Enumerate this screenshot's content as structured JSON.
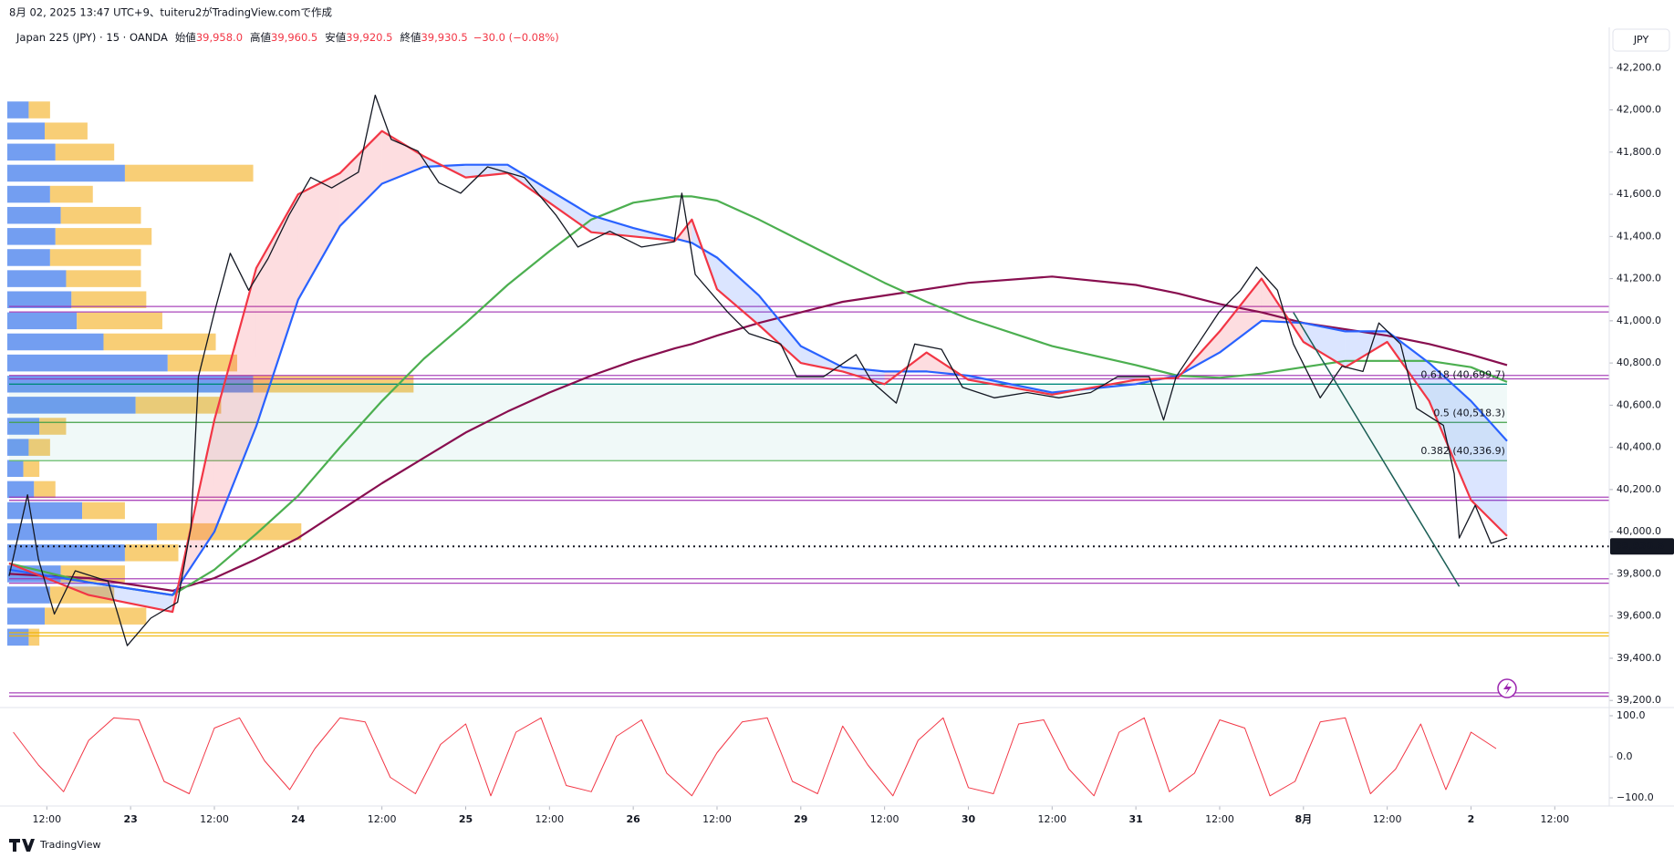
{
  "header": {
    "caption": "8月 02, 2025 13:47 UTC+9、tuiteru2がTradingView.comで作成",
    "symbol": "Japan 225 (JPY) · 15 · OANDA",
    "ohlc": [
      {
        "label": "始値",
        "value": "39,958.0"
      },
      {
        "label": "高値",
        "value": "39,960.5"
      },
      {
        "label": "安値",
        "value": "39,920.5"
      },
      {
        "label": "終値",
        "value": "39,930.5"
      }
    ],
    "change": "−30.0 (−0.08%)"
  },
  "currency": "JPY",
  "footer": "TradingView",
  "chart_data": {
    "type": "line",
    "xlim": [
      -0.45,
      18.65
    ],
    "xticks": [
      {
        "value": 0,
        "label": "12:00"
      },
      {
        "value": 1,
        "label": "23"
      },
      {
        "value": 2,
        "label": "12:00"
      },
      {
        "value": 3,
        "label": "24"
      },
      {
        "value": 4,
        "label": "12:00"
      },
      {
        "value": 5,
        "label": "25"
      },
      {
        "value": 6,
        "label": "12:00"
      },
      {
        "value": 7,
        "label": "26"
      },
      {
        "value": 8,
        "label": "12:00"
      },
      {
        "value": 9,
        "label": "29"
      },
      {
        "value": 10,
        "label": "12:00"
      },
      {
        "value": 11,
        "label": "30"
      },
      {
        "value": 12,
        "label": "12:00"
      },
      {
        "value": 13,
        "label": "31"
      },
      {
        "value": 14,
        "label": "12:00"
      },
      {
        "value": 15,
        "label": "8月"
      },
      {
        "value": 16,
        "label": "12:00"
      },
      {
        "value": 17,
        "label": "2"
      },
      {
        "value": 18,
        "label": "12:00"
      }
    ],
    "ylim": [
      39200,
      42200
    ],
    "yticks": [
      {
        "value": 42200,
        "label": "42,200.0"
      },
      {
        "value": 42000,
        "label": "42,000.0"
      },
      {
        "value": 41800,
        "label": "41,800.0"
      },
      {
        "value": 41600,
        "label": "41,600.0"
      },
      {
        "value": 41400,
        "label": "41,400.0"
      },
      {
        "value": 41200,
        "label": "41,200.0"
      },
      {
        "value": 41000,
        "label": "41,000.0"
      },
      {
        "value": 40800,
        "label": "40,800.0"
      },
      {
        "value": 40600,
        "label": "40,600.0"
      },
      {
        "value": 40400,
        "label": "40,400.0"
      },
      {
        "value": 40200,
        "label": "40,200.0"
      },
      {
        "value": 40000,
        "label": "40,000.0"
      },
      {
        "value": 39800,
        "label": "39,800.0"
      },
      {
        "value": 39600,
        "label": "39,600.0"
      },
      {
        "value": 39400,
        "label": "39,400.0"
      },
      {
        "value": 39200,
        "label": "39,200.0"
      }
    ],
    "grid": false,
    "series": [
      {
        "color": "#131722",
        "x": [
          -0.45,
          -0.23,
          -0.1,
          0.09,
          0.34,
          0.73,
          0.96,
          1.24,
          1.56,
          1.72,
          1.81,
          2.0,
          2.19,
          2.41,
          2.64,
          2.89,
          3.15,
          3.4,
          3.72,
          3.92,
          4.11,
          4.43,
          4.68,
          4.94,
          5.26,
          5.7,
          6.08,
          6.34,
          6.72,
          7.1,
          7.49,
          7.58,
          7.74,
          8.13,
          8.38,
          8.76,
          8.95,
          9.27,
          9.66,
          9.85,
          10.14,
          10.36,
          10.68,
          10.93,
          11.31,
          11.7,
          12.08,
          12.46,
          12.78,
          13.16,
          13.33,
          13.48,
          13.74,
          13.99,
          14.25,
          14.44,
          14.69,
          14.88,
          15.2,
          15.46,
          15.71,
          15.9,
          16.16,
          16.35,
          16.67,
          16.8,
          16.86,
          17.05,
          17.24,
          17.43
        ],
        "values": [
          39790,
          40175,
          39870,
          39610,
          39815,
          39765,
          39460,
          39590,
          39665,
          40020,
          40735,
          41040,
          41320,
          41145,
          41295,
          41500,
          41680,
          41630,
          41705,
          42070,
          41860,
          41805,
          41655,
          41605,
          41730,
          41680,
          41500,
          41350,
          41425,
          41350,
          41375,
          41605,
          41220,
          41040,
          40940,
          40890,
          40735,
          40735,
          40840,
          40710,
          40610,
          40890,
          40865,
          40685,
          40635,
          40660,
          40635,
          40660,
          40735,
          40735,
          40530,
          40735,
          40890,
          41040,
          41145,
          41255,
          41145,
          40890,
          40635,
          40785,
          40760,
          40990,
          40890,
          40585,
          40505,
          40275,
          39970,
          40125,
          39945,
          39970
        ]
      },
      {
        "color": "#f23645",
        "x": [
          -0.45,
          0.5,
          1.5,
          2.0,
          2.5,
          3.0,
          3.5,
          4.0,
          4.5,
          5.0,
          5.5,
          6.0,
          6.5,
          7.0,
          7.5,
          7.7,
          8.0,
          8.5,
          9.0,
          9.5,
          10.0,
          10.5,
          11.0,
          12.0,
          13.0,
          13.5,
          14.0,
          14.5,
          15.0,
          15.5,
          16.0,
          16.5,
          17.0,
          17.43
        ],
        "values": [
          39850,
          39700,
          39620,
          40530,
          41250,
          41600,
          41700,
          41900,
          41780,
          41680,
          41700,
          41560,
          41420,
          41400,
          41380,
          41480,
          41150,
          40980,
          40800,
          40760,
          40700,
          40850,
          40720,
          40650,
          40720,
          40730,
          40950,
          41200,
          40900,
          40780,
          40900,
          40620,
          40150,
          39980
        ]
      },
      {
        "color": "#2962ff",
        "x": [
          -0.45,
          0.5,
          1.5,
          2.0,
          2.5,
          3.0,
          3.5,
          4.0,
          4.5,
          5.0,
          5.5,
          6.0,
          6.5,
          7.0,
          7.5,
          7.7,
          8.0,
          8.5,
          9.0,
          9.5,
          10.0,
          10.5,
          11.0,
          12.0,
          13.0,
          13.5,
          14.0,
          14.5,
          15.0,
          15.5,
          16.0,
          16.5,
          17.0,
          17.43
        ],
        "values": [
          39820,
          39760,
          39700,
          40000,
          40500,
          41100,
          41450,
          41650,
          41730,
          41740,
          41740,
          41620,
          41500,
          41440,
          41390,
          41370,
          41300,
          41120,
          40880,
          40780,
          40760,
          40760,
          40740,
          40660,
          40700,
          40740,
          40850,
          41000,
          40990,
          40950,
          40950,
          40800,
          40620,
          40430
        ]
      },
      {
        "color": "#4caf50",
        "x": [
          -0.45,
          0.5,
          1.5,
          2.0,
          2.5,
          3.0,
          3.5,
          4.0,
          4.5,
          5.0,
          5.5,
          6.0,
          6.5,
          7.0,
          7.5,
          7.7,
          8.0,
          8.5,
          9.0,
          9.5,
          10.0,
          10.5,
          11.0,
          12.0,
          13.0,
          13.5,
          14.0,
          14.5,
          15.0,
          15.5,
          16.0,
          16.5,
          17.0,
          17.43
        ],
        "values": [
          39850,
          39760,
          39700,
          39820,
          39990,
          40170,
          40400,
          40620,
          40820,
          40990,
          41170,
          41330,
          41480,
          41560,
          41590,
          41590,
          41570,
          41480,
          41380,
          41280,
          41180,
          41090,
          41010,
          40880,
          40790,
          40740,
          40730,
          40750,
          40780,
          40810,
          40810,
          40810,
          40780,
          40710
        ]
      },
      {
        "color": "#880e4f",
        "x": [
          -0.45,
          0.5,
          1.5,
          2.0,
          2.5,
          3.0,
          3.5,
          4.0,
          4.5,
          5.0,
          5.5,
          6.0,
          6.5,
          7.0,
          7.5,
          7.7,
          8.0,
          8.5,
          9.0,
          9.5,
          10.0,
          10.5,
          11.0,
          12.0,
          13.0,
          13.5,
          14.0,
          14.5,
          15.0,
          15.5,
          16.0,
          16.5,
          17.0,
          17.43
        ],
        "values": [
          39800,
          39780,
          39720,
          39780,
          39870,
          39970,
          40100,
          40230,
          40350,
          40470,
          40570,
          40660,
          40740,
          40810,
          40870,
          40890,
          40930,
          40990,
          41040,
          41090,
          41120,
          41150,
          41180,
          41210,
          41170,
          41130,
          41080,
          41040,
          40990,
          40960,
          40930,
          40890,
          40840,
          40790
        ]
      }
    ],
    "levels": [
      {
        "value": 41068,
        "color": "#9c27b0"
      },
      {
        "value": 41042,
        "color": "#9c27b0"
      },
      {
        "value": 40741,
        "color": "#9c27b0"
      },
      {
        "value": 40725,
        "color": "#9c27b0"
      },
      {
        "value": 40164,
        "color": "#9c27b0"
      },
      {
        "value": 40149,
        "color": "#9c27b0"
      },
      {
        "value": 39777,
        "color": "#9c27b0"
      },
      {
        "value": 39756,
        "color": "#9c27b0"
      },
      {
        "value": 39521,
        "color": "#f0b400"
      },
      {
        "value": 39506,
        "color": "#f0b400"
      },
      {
        "value": 39236,
        "color": "#9c27b0"
      },
      {
        "value": 39220,
        "color": "#9c27b0"
      }
    ],
    "fib": [
      {
        "value": 40699.7,
        "label": "0.618 (40,699.7)",
        "color": "#00897b"
      },
      {
        "value": 40518.3,
        "label": "0.5 (40,518.3)",
        "color": "#43a047"
      },
      {
        "value": 40336.9,
        "label": "0.382 (40,336.9)",
        "color": "#66bb6a"
      }
    ],
    "trendline": {
      "color": "#1b5e55",
      "x": [
        14.88,
        16.86
      ],
      "values": [
        41040,
        39740
      ]
    },
    "last": {
      "value": 39930.5,
      "label": "39,930.5"
    },
    "volume_profile": {
      "prices": [
        42000,
        41900,
        41800,
        41700,
        41600,
        41500,
        41400,
        41300,
        41200,
        41100,
        41000,
        40900,
        40800,
        40700,
        40600,
        40500,
        40400,
        40300,
        40200,
        40100,
        40000,
        39900,
        39800,
        39700,
        39600,
        39500
      ],
      "up": [
        20,
        35,
        45,
        110,
        40,
        50,
        45,
        40,
        55,
        60,
        65,
        90,
        150,
        230,
        120,
        30,
        20,
        15,
        25,
        70,
        140,
        110,
        50,
        40,
        35,
        20
      ],
      "down": [
        20,
        40,
        55,
        120,
        40,
        75,
        90,
        85,
        70,
        70,
        80,
        105,
        65,
        150,
        80,
        25,
        20,
        15,
        20,
        40,
        135,
        50,
        60,
        60,
        95,
        10
      ]
    },
    "oscillator": {
      "color": "#f23645",
      "ylim": [
        -120,
        120
      ],
      "yticks": [
        {
          "value": 100,
          "label": "100.0"
        },
        {
          "value": 0,
          "label": "0.0"
        },
        {
          "value": -100,
          "label": "−100.0"
        }
      ],
      "x": [
        -0.4,
        -0.1,
        0.2,
        0.5,
        0.8,
        1.1,
        1.4,
        1.7,
        2.0,
        2.3,
        2.6,
        2.9,
        3.2,
        3.5,
        3.8,
        4.1,
        4.4,
        4.7,
        5.0,
        5.3,
        5.6,
        5.9,
        6.2,
        6.5,
        6.8,
        7.1,
        7.4,
        7.7,
        8.0,
        8.3,
        8.6,
        8.9,
        9.2,
        9.5,
        9.8,
        10.1,
        10.4,
        10.7,
        11.0,
        11.3,
        11.6,
        11.9,
        12.2,
        12.5,
        12.8,
        13.1,
        13.4,
        13.7,
        14.0,
        14.3,
        14.6,
        14.9,
        15.2,
        15.5,
        15.8,
        16.1,
        16.4,
        16.7,
        17.0,
        17.3
      ],
      "values": [
        60,
        -20,
        -85,
        40,
        95,
        90,
        -60,
        -90,
        70,
        95,
        -10,
        -80,
        20,
        95,
        85,
        -50,
        -90,
        30,
        80,
        -95,
        60,
        95,
        -70,
        -85,
        50,
        90,
        -40,
        -95,
        10,
        85,
        95,
        -60,
        -90,
        75,
        -20,
        -95,
        40,
        95,
        -75,
        -90,
        80,
        90,
        -30,
        -95,
        60,
        95,
        -85,
        -40,
        90,
        70,
        -95,
        -60,
        85,
        95,
        -90,
        -30,
        80,
        -80,
        60,
        20
      ]
    }
  }
}
